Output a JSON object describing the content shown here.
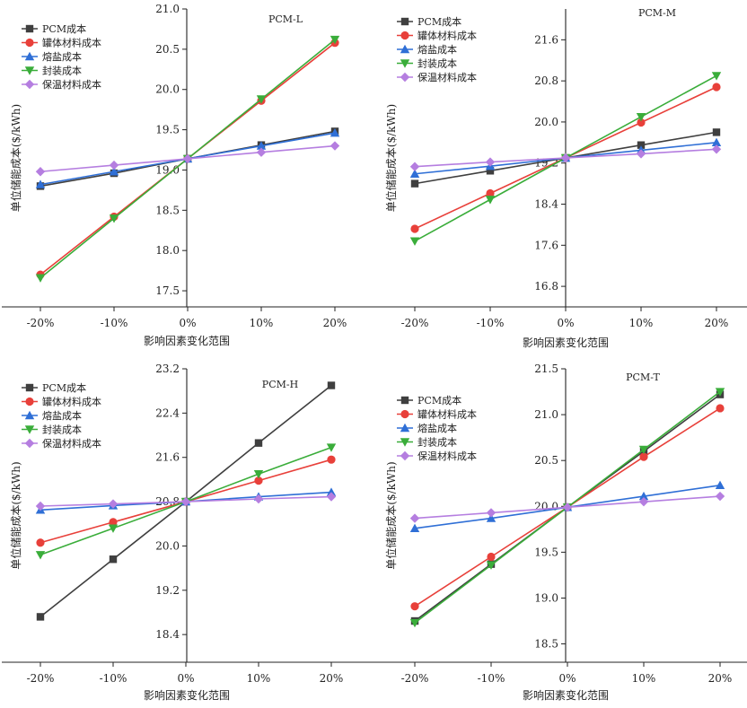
{
  "colors": {
    "PCM成本": "#3f3f3f",
    "罐体材料成本": "#e8403a",
    "熔盐成本": "#2f6fd6",
    "封装成本": "#3aad3a",
    "保温材料成本": "#b57ee0"
  },
  "chart_data": [
    {
      "type": "line",
      "title": "PCM-L",
      "xlabel": "影响因素变化范围",
      "ylabel": "单位储能成本($/kWh)",
      "categories": [
        "-20%",
        "-10%",
        "0%",
        "10%",
        "20%"
      ],
      "y_ticks": [
        "17.5",
        "18.0",
        "18.5",
        "19.0",
        "19.5",
        "20.0",
        "20.5",
        "21.0"
      ],
      "ylim": [
        17.3,
        21.0
      ],
      "grid": false,
      "legend": "top-left",
      "series": [
        {
          "name": "PCM成本",
          "marker": "square",
          "values": [
            18.8,
            18.96,
            19.14,
            19.31,
            19.48
          ]
        },
        {
          "name": "罐体材料成本",
          "marker": "circle",
          "values": [
            17.7,
            18.42,
            19.14,
            19.86,
            20.58
          ]
        },
        {
          "name": "熔盐成本",
          "marker": "triangle-up",
          "values": [
            18.82,
            18.98,
            19.14,
            19.3,
            19.46
          ]
        },
        {
          "name": "封装成本",
          "marker": "triangle-down",
          "values": [
            17.66,
            18.4,
            19.14,
            19.88,
            20.62
          ]
        },
        {
          "name": "保温材料成本",
          "marker": "diamond",
          "values": [
            18.98,
            19.06,
            19.14,
            19.22,
            19.3
          ]
        }
      ]
    },
    {
      "type": "line",
      "title": "PCM-M",
      "xlabel": "影响因素变化范围",
      "ylabel": "单位储能成本($/kWh)",
      "categories": [
        "-20%",
        "-10%",
        "0%",
        "10%",
        "20%"
      ],
      "y_ticks": [
        "16.8",
        "17.6",
        "18.4",
        "19.2",
        "20.0",
        "20.8",
        "21.6"
      ],
      "ylim": [
        16.4,
        22.2
      ],
      "grid": false,
      "legend": "top-left",
      "series": [
        {
          "name": "PCM成本",
          "marker": "square",
          "values": [
            18.8,
            19.05,
            19.3,
            19.55,
            19.8
          ]
        },
        {
          "name": "罐体材料成本",
          "marker": "circle",
          "values": [
            17.92,
            18.61,
            19.3,
            19.99,
            20.68
          ]
        },
        {
          "name": "熔盐成本",
          "marker": "triangle-up",
          "values": [
            18.99,
            19.14,
            19.3,
            19.45,
            19.6
          ]
        },
        {
          "name": "封装成本",
          "marker": "triangle-down",
          "values": [
            17.68,
            18.49,
            19.3,
            20.1,
            20.9
          ]
        },
        {
          "name": "保温材料成本",
          "marker": "diamond",
          "values": [
            19.13,
            19.22,
            19.3,
            19.38,
            19.47
          ]
        }
      ]
    },
    {
      "type": "line",
      "title": "PCM-H",
      "xlabel": "影响因素变化范围",
      "ylabel": "单位储能成本($/kWh)",
      "categories": [
        "-20%",
        "-10%",
        "0%",
        "10%",
        "20%"
      ],
      "y_ticks": [
        "18.4",
        "19.2",
        "20.0",
        "20.8",
        "21.6",
        "22.4",
        "23.2"
      ],
      "ylim": [
        17.9,
        23.2
      ],
      "grid": false,
      "legend": "top-left",
      "series": [
        {
          "name": "PCM成本",
          "marker": "square",
          "values": [
            18.72,
            19.76,
            20.8,
            21.86,
            22.9
          ]
        },
        {
          "name": "罐体材料成本",
          "marker": "circle",
          "values": [
            20.06,
            20.43,
            20.8,
            21.18,
            21.56
          ]
        },
        {
          "name": "熔盐成本",
          "marker": "triangle-up",
          "values": [
            20.65,
            20.73,
            20.8,
            20.89,
            20.97
          ]
        },
        {
          "name": "封装成本",
          "marker": "triangle-down",
          "values": [
            19.84,
            20.32,
            20.8,
            21.3,
            21.78
          ]
        },
        {
          "name": "保温材料成本",
          "marker": "diamond",
          "values": [
            20.72,
            20.76,
            20.8,
            20.85,
            20.89
          ]
        }
      ]
    },
    {
      "type": "line",
      "title": "PCM-T",
      "xlabel": "影响因素变化范围",
      "ylabel": "单位储能成本($/kWh)",
      "categories": [
        "-20%",
        "-10%",
        "0%",
        "10%",
        "20%"
      ],
      "y_ticks": [
        "18.5",
        "19.0",
        "19.5",
        "20.0",
        "20.5",
        "21.0",
        "21.5"
      ],
      "ylim": [
        18.3,
        21.5
      ],
      "grid": false,
      "legend": "top-left",
      "series": [
        {
          "name": "PCM成本",
          "marker": "square",
          "values": [
            18.75,
            19.37,
            19.99,
            20.6,
            21.22
          ]
        },
        {
          "name": "罐体材料成本",
          "marker": "circle",
          "values": [
            18.91,
            19.45,
            19.99,
            20.54,
            21.07
          ]
        },
        {
          "name": "熔盐成本",
          "marker": "triangle-up",
          "values": [
            19.76,
            19.87,
            19.99,
            20.11,
            20.23
          ]
        },
        {
          "name": "封装成本",
          "marker": "triangle-down",
          "values": [
            18.73,
            19.36,
            19.99,
            20.62,
            21.25
          ]
        },
        {
          "name": "保温材料成本",
          "marker": "diamond",
          "values": [
            19.87,
            19.93,
            19.99,
            20.05,
            20.11
          ]
        }
      ]
    }
  ]
}
